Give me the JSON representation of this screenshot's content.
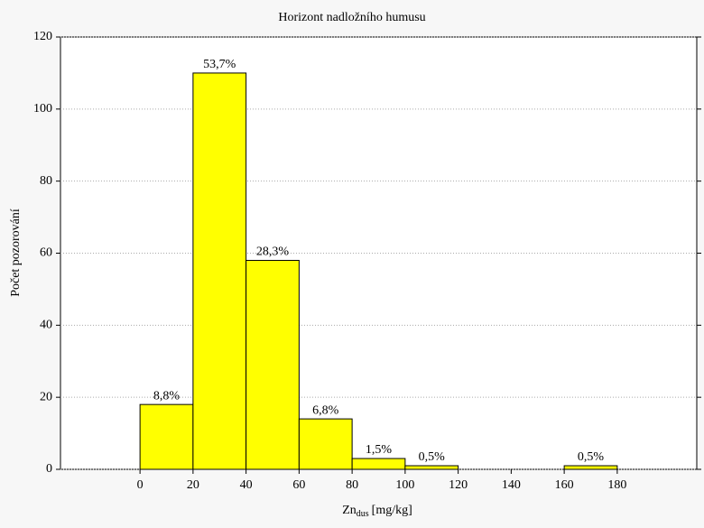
{
  "chart_data": {
    "type": "histogram",
    "title": "Horizont nadložního humusu",
    "xlabel": {
      "main": "Zn",
      "sub": "dus",
      "unit": "[mg/kg]"
    },
    "ylabel": "Počet pozorování",
    "bins": [
      0,
      20,
      40,
      60,
      80,
      100,
      120,
      140,
      160,
      180
    ],
    "counts": [
      18,
      110,
      58,
      14,
      3,
      1,
      0,
      0,
      1
    ],
    "bar_labels": [
      "8,8%",
      "53,7%",
      "28,3%",
      "6,8%",
      "1,5%",
      "0,5%",
      null,
      null,
      "0,5%"
    ],
    "color": "#ffff00",
    "xlim": [
      -30,
      210
    ],
    "xticks": [
      0,
      20,
      40,
      60,
      80,
      100,
      120,
      140,
      160,
      180
    ],
    "ylim": [
      0,
      120
    ],
    "yticks": [
      0,
      20,
      40,
      60,
      80,
      100,
      120
    ],
    "grid": true
  }
}
